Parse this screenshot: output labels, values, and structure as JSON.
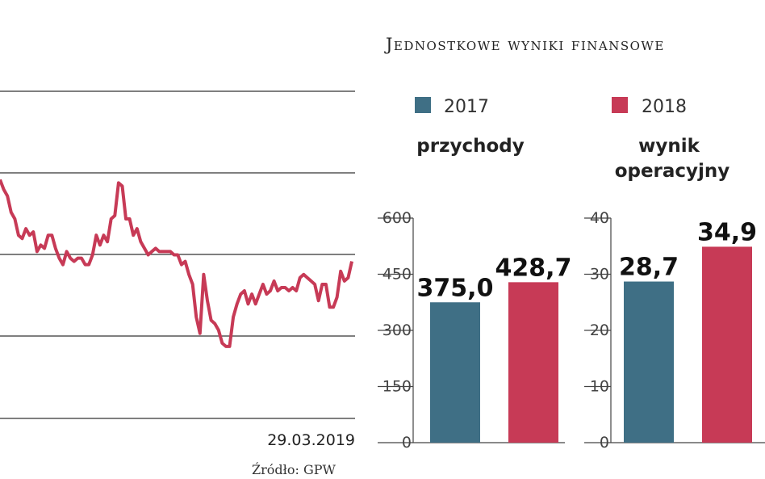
{
  "header": {
    "title": "Jednostkowe wyniki finansowe"
  },
  "source": {
    "label": "Źródło: GPW"
  },
  "legend": [
    {
      "label": "2017",
      "color": "#3f6f85"
    },
    {
      "label": "2018",
      "color": "#c73a56"
    }
  ],
  "chart_data": [
    {
      "type": "line",
      "x_label_last": "29.03.2019",
      "grid": true,
      "color": "#c73a56",
      "values": [
        73,
        70,
        68,
        63,
        61,
        56,
        55,
        58,
        56,
        57,
        51,
        53,
        52,
        56,
        56,
        52,
        49,
        47,
        51,
        49,
        48,
        49,
        49,
        47,
        47,
        50,
        56,
        53,
        56,
        54,
        61,
        62,
        72,
        71,
        61,
        61,
        56,
        58,
        54,
        52,
        50,
        51,
        52,
        51,
        51,
        51,
        51,
        50,
        50,
        47,
        48,
        44,
        41,
        31,
        26,
        44,
        36,
        30,
        29,
        27,
        23,
        22,
        22,
        31,
        35,
        38,
        39,
        35,
        38,
        35,
        38,
        41,
        38,
        39,
        42,
        39,
        40,
        40,
        39,
        40,
        39,
        43,
        44,
        43,
        42,
        41,
        36,
        41,
        41,
        34,
        34,
        37,
        45,
        42,
        43,
        48
      ]
    },
    {
      "type": "bar",
      "title": "przychody",
      "categories": [
        "2017",
        "2018"
      ],
      "values": [
        375.0,
        428.7
      ],
      "labels": [
        "375,0",
        "428,7"
      ],
      "ylim": [
        0,
        600
      ],
      "yticks": [
        0,
        150,
        300,
        450,
        600
      ]
    },
    {
      "type": "bar",
      "title": "wynik operacyjny",
      "categories": [
        "2017",
        "2018"
      ],
      "values": [
        28.7,
        34.9
      ],
      "labels": [
        "28,7",
        "34,9"
      ],
      "ylim": [
        0,
        40
      ],
      "yticks": [
        0,
        10,
        20,
        30,
        40
      ]
    }
  ]
}
